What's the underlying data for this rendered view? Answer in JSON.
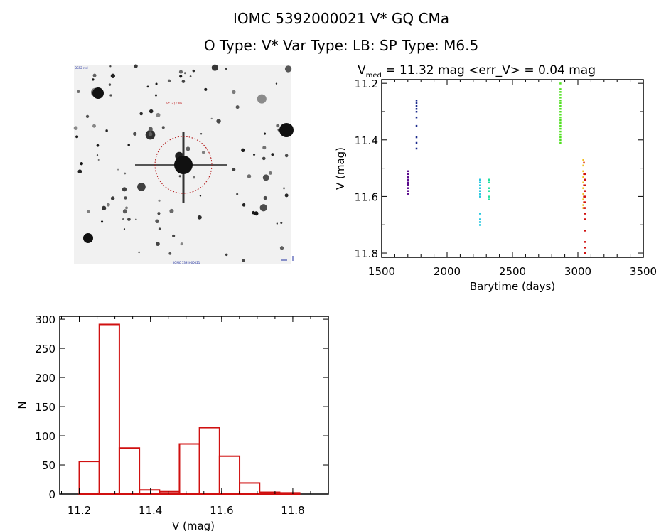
{
  "header": {
    "title": "IOMC 5392000021    V* GQ CMa",
    "subtitle": "O Type: V*   Var Type: LB:   SP Type: M6.5"
  },
  "image_panel": {
    "corner_label_tl": "DSS2 red",
    "target_label": "V* GQ CMa",
    "bottom_label": "IOMC 5392000021"
  },
  "chart_data": [
    {
      "type": "scatter",
      "title_main": "V",
      "title_sub": "med",
      "title_rest": " = 11.32 mag <err_V> = 0.04 mag",
      "xlabel": "Barytime (days)",
      "ylabel": "V (mag)",
      "xlim": [
        1500,
        3500
      ],
      "ylim": [
        11.815,
        11.187
      ],
      "xticks": [
        "1500",
        "2000",
        "2500",
        "3000",
        "3500"
      ],
      "yticks": [
        "11.2",
        "11.4",
        "11.6",
        "11.8"
      ],
      "series": [
        {
          "name": "group1",
          "color": "#5a0a8c",
          "x": 1700,
          "values": [
            11.51,
            11.52,
            11.53,
            11.54,
            11.55,
            11.555,
            11.56,
            11.57,
            11.58,
            11.59
          ]
        },
        {
          "name": "group2",
          "color": "#1a2a8c",
          "x": 1765,
          "values": [
            11.26,
            11.27,
            11.28,
            11.29,
            11.3,
            11.32,
            11.35,
            11.39,
            11.41,
            11.43
          ]
        },
        {
          "name": "group3",
          "color": "#28c8e0",
          "x": 2250,
          "values": [
            11.54,
            11.55,
            11.56,
            11.57,
            11.58,
            11.59,
            11.6,
            11.66,
            11.68,
            11.69,
            11.7
          ]
        },
        {
          "name": "group4",
          "color": "#20e0a0",
          "x": 2320,
          "values": [
            11.54,
            11.55,
            11.57,
            11.58,
            11.6,
            11.61
          ]
        },
        {
          "name": "group5",
          "color": "#50e020",
          "x": 2865,
          "values": [
            11.2,
            11.22,
            11.23,
            11.24,
            11.25,
            11.26,
            11.27,
            11.28,
            11.29,
            11.3,
            11.31,
            11.32,
            11.33,
            11.34,
            11.35,
            11.36,
            11.37,
            11.38,
            11.39,
            11.4,
            11.41
          ]
        },
        {
          "name": "group6",
          "color": "#f0c020",
          "x": 3040,
          "values": [
            11.47,
            11.49,
            11.51,
            11.53,
            11.55,
            11.57,
            11.59,
            11.61,
            11.63,
            11.64
          ]
        },
        {
          "name": "group7",
          "color": "#e04010",
          "x": 3045,
          "values": [
            11.48,
            11.52,
            11.56,
            11.6,
            11.62,
            11.64
          ]
        },
        {
          "name": "group8",
          "color": "#d01010",
          "x": 3052,
          "values": [
            11.52,
            11.54,
            11.56,
            11.58,
            11.6,
            11.62,
            11.64,
            11.66,
            11.68,
            11.72,
            11.76,
            11.78,
            11.8
          ]
        }
      ]
    },
    {
      "type": "bar",
      "xlabel": "V (mag)",
      "ylabel": "N",
      "xlim": [
        11.145,
        11.9
      ],
      "ylim": [
        0,
        305
      ],
      "bin_start": 11.2,
      "bin_width": 0.0563,
      "values": [
        56,
        291,
        79,
        7,
        4,
        86,
        114,
        65,
        19,
        3,
        2
      ],
      "color": "#d01010",
      "xticks": [
        "11.2",
        "11.4",
        "11.6",
        "11.8"
      ],
      "yticks": [
        "0",
        "50",
        "100",
        "150",
        "200",
        "250",
        "300"
      ]
    }
  ]
}
